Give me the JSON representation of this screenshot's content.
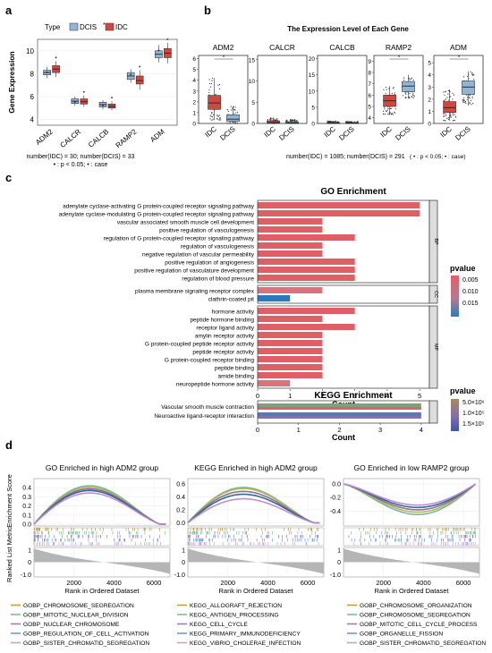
{
  "panel_labels": {
    "a": "a",
    "b": "b",
    "c": "c",
    "d": "d"
  },
  "chart_data": [
    {
      "id": "a",
      "type": "box",
      "legend_title": "Type",
      "series": [
        {
          "name": "DCIS",
          "color": "#8fb6d9"
        },
        {
          "name": "IDC",
          "color": "#d6453d"
        }
      ],
      "categories": [
        "ADM2",
        "CALCR",
        "CALCB",
        "RAMP2",
        "ADM"
      ],
      "boxes": [
        {
          "cat": "ADM2",
          "DCIS": [
            7.6,
            7.9,
            8.1,
            8.3,
            8.6
          ],
          "IDC": [
            7.7,
            8.1,
            8.4,
            8.7,
            9.1
          ]
        },
        {
          "cat": "CALCR",
          "DCIS": [
            5.2,
            5.4,
            5.6,
            5.8,
            6.0
          ],
          "IDC": [
            5.1,
            5.35,
            5.55,
            5.8,
            6.1
          ]
        },
        {
          "cat": "CALCB",
          "DCIS": [
            4.9,
            5.1,
            5.3,
            5.5,
            5.7
          ],
          "IDC": [
            4.8,
            5.0,
            5.15,
            5.35,
            5.6
          ]
        },
        {
          "cat": "RAMP2",
          "DCIS": [
            7.2,
            7.5,
            7.8,
            8.1,
            8.4
          ],
          "IDC": [
            6.6,
            7.1,
            7.4,
            7.8,
            8.3
          ]
        },
        {
          "cat": "ADM",
          "DCIS": [
            9.0,
            9.4,
            9.7,
            10.0,
            10.5
          ],
          "IDC": [
            8.9,
            9.4,
            9.8,
            10.2,
            10.7
          ]
        }
      ],
      "ylabel": "Gene Expression",
      "yticks": [
        4,
        6,
        8,
        10
      ],
      "ylim": [
        3.5,
        11
      ],
      "caption1": "number(IDC) = 30; number(DCIS) = 33",
      "caption2": "• : p < 0.05; • : case"
    },
    {
      "id": "b",
      "type": "box",
      "title": "The Expression Level of Each Gene",
      "subplots": [
        {
          "gene": "ADM2",
          "yticks": [
            0,
            1,
            2,
            3,
            4,
            5,
            6
          ],
          "ylim": [
            0,
            6.3
          ],
          "IDC": [
            0.3,
            1.3,
            1.9,
            2.6,
            4.2
          ],
          "DCIS": [
            0,
            0.2,
            0.4,
            0.8,
            1.6
          ],
          "sig": true
        },
        {
          "gene": "CALCR",
          "yticks": [
            0,
            5,
            10,
            15
          ],
          "ylim": [
            0,
            16
          ],
          "IDC": [
            0,
            0.1,
            0.2,
            0.6,
            1.4
          ],
          "DCIS": [
            0,
            0.05,
            0.15,
            0.4,
            1.0
          ],
          "sig": false
        },
        {
          "gene": "CALCB",
          "yticks": [
            0,
            5,
            10,
            15,
            20
          ],
          "ylim": [
            0,
            21
          ],
          "IDC": [
            0,
            0.05,
            0.1,
            0.3,
            0.8
          ],
          "DCIS": [
            0,
            0.05,
            0.1,
            0.25,
            0.6
          ],
          "sig": false
        },
        {
          "gene": "RAMP2",
          "yticks": [
            4,
            5,
            6,
            7,
            8,
            9
          ],
          "ylim": [
            3.5,
            9.5
          ],
          "IDC": [
            4.3,
            5.0,
            5.5,
            6.0,
            6.8
          ],
          "DCIS": [
            5.7,
            6.3,
            6.8,
            7.2,
            7.8
          ],
          "sig": true
        },
        {
          "gene": "ADM",
          "yticks": [
            0,
            1,
            2,
            3,
            4,
            5
          ],
          "ylim": [
            0,
            5.6
          ],
          "IDC": [
            0.2,
            0.9,
            1.3,
            1.8,
            2.8
          ],
          "DCIS": [
            1.5,
            2.4,
            3.0,
            3.5,
            4.3
          ],
          "sig": true
        }
      ],
      "xcats": [
        "IDC",
        "DCIS"
      ],
      "caption": "number(IDC) = 1085; number(DCIS) = 291",
      "caption_note": "( • : p < 0.05; • : case)"
    },
    {
      "id": "c-go",
      "type": "bar",
      "title": "GO Enrichment",
      "xlabel": "Count",
      "xticks": [
        0,
        1,
        2,
        3,
        4,
        5
      ],
      "xlim": [
        0,
        5.3
      ],
      "groups": [
        {
          "label": "BP",
          "terms": [
            {
              "term": "adenylate cyclase-activating G protein-coupled receptor signaling pathway",
              "count": 5,
              "pvalue": 0.001
            },
            {
              "term": "adenylate cyclase-modulating G protein-coupled receptor signaling pathway",
              "count": 5,
              "pvalue": 0.001
            },
            {
              "term": "vascular associated smooth muscle cell development",
              "count": 2,
              "pvalue": 0.001
            },
            {
              "term": "positive regulation of vasculogenesis",
              "count": 2,
              "pvalue": 0.001
            },
            {
              "term": "regulation of G protein-coupled receptor signaling pathway",
              "count": 3,
              "pvalue": 0.002
            },
            {
              "term": "regulation of vasculogenesis",
              "count": 2,
              "pvalue": 0.001
            },
            {
              "term": "negative regulation of vascular permeability",
              "count": 2,
              "pvalue": 0.001
            },
            {
              "term": "positive regulation of angiogenesis",
              "count": 3,
              "pvalue": 0.002
            },
            {
              "term": "positive regulation of vasculature development",
              "count": 3,
              "pvalue": 0.002
            },
            {
              "term": "regulation of blood pressure",
              "count": 3,
              "pvalue": 0.002
            }
          ]
        },
        {
          "label": "CC",
          "terms": [
            {
              "term": "plasma membrane signaling receptor complex",
              "count": 2,
              "pvalue": 0.004
            },
            {
              "term": "clathrin-coated pit",
              "count": 1,
              "pvalue": 0.016
            }
          ]
        },
        {
          "label": "MF",
          "terms": [
            {
              "term": "hormone activity",
              "count": 3,
              "pvalue": 0.001
            },
            {
              "term": "peptide hormone binding",
              "count": 2,
              "pvalue": 0.001
            },
            {
              "term": "receptor ligand activity",
              "count": 3,
              "pvalue": 0.002
            },
            {
              "term": "amylin receptor activity",
              "count": 2,
              "pvalue": 0.001
            },
            {
              "term": "G protein-coupled peptide receptor activity",
              "count": 2,
              "pvalue": 0.002
            },
            {
              "term": "peptide receptor activity",
              "count": 2,
              "pvalue": 0.002
            },
            {
              "term": "G protein-coupled receptor binding",
              "count": 2,
              "pvalue": 0.003
            },
            {
              "term": "peptide binding",
              "count": 2,
              "pvalue": 0.003
            },
            {
              "term": "amide binding",
              "count": 2,
              "pvalue": 0.003
            },
            {
              "term": "neuropeptide hormone activity",
              "count": 1,
              "pvalue": 0.006
            }
          ]
        }
      ],
      "legend": {
        "title": "pvalue",
        "ticks": [
          "0.005",
          "0.010",
          "0.015"
        ]
      }
    },
    {
      "id": "c-kegg",
      "type": "bar",
      "title": "KEGG Enrichment",
      "xlabel": "Count",
      "xticks": [
        0,
        1,
        2,
        3,
        4
      ],
      "xlim": [
        0,
        4.2
      ],
      "terms": [
        {
          "term": "Vascular smooth muscle contraction",
          "count": 4
        },
        {
          "term": "Neuroactive ligand-receptor interaction",
          "count": 4
        }
      ],
      "legend": {
        "title": "pvalue",
        "ticks": [
          "5.0×10⁶",
          "1.0×10⁵",
          "1.5×10⁵"
        ]
      }
    },
    {
      "id": "d",
      "type": "line",
      "panels": [
        {
          "title": "GO Enriched in high ADM2 group",
          "yticks": [
            "0.4",
            "0.3",
            "0.2",
            "0.1",
            "0.0"
          ],
          "ylim": [
            -0.02,
            0.5
          ],
          "yvals": [
            0.4,
            0.3,
            0.2,
            0.1,
            0.0
          ],
          "peaks": [
            0.48,
            0.46,
            0.44,
            0.42,
            0.39
          ],
          "shape": "pos"
        },
        {
          "title": "KEGG Enriched in high ADM2 group",
          "yticks": [
            "0.6",
            "0.4",
            "0.2",
            "0.0"
          ],
          "ylim": [
            -0.05,
            0.68
          ],
          "yvals": [
            0.6,
            0.4,
            0.2,
            0.0
          ],
          "peaks": [
            0.62,
            0.6,
            0.55,
            0.5,
            0.42
          ],
          "shape": "pos"
        },
        {
          "title": "GO Enriched in low RAMP2 group",
          "yticks": [
            "0.0",
            "-0.2",
            "-0.4"
          ],
          "ylim": [
            -0.62,
            0.08
          ],
          "yvals": [
            0.0,
            -0.2,
            -0.4
          ],
          "peaks": [
            -0.52,
            -0.48,
            -0.44,
            -0.4,
            -0.36
          ],
          "shape": "neg"
        }
      ],
      "rank_yticks": [
        "1",
        "0",
        "-1.0"
      ],
      "xticks": [
        2000,
        4000,
        6000
      ],
      "xlim": [
        0,
        6800
      ],
      "ylabel_top": "Enrichment Score",
      "ylabel_bottom": "Ranked List Metric",
      "xlabel": "Rank in Ordered Dataset",
      "line_colors": [
        "#7bb6a4",
        "#b8b74a",
        "#8a6bb0",
        "#2f6f7d",
        "#c38bd6"
      ],
      "legend_cols": [
        [
          "GOBP_CHROMOSOME_SEGREGATION",
          "GOBP_MITOTIC_NUCLEAR_DIVISION",
          "GOBP_NUCLEAR_CHROMOSOME",
          "GOBP_REGULATION_OF_CELL_ACTIVATION",
          "GOBP_SISTER_CHROMATID_SEGREGATION"
        ],
        [
          "KEGG_ALLOGRAFT_REJECTION",
          "KEGG_ANTIGEN_PROCESSING",
          "KEGG_CELL_CYCLE",
          "KEGG_PRIMARY_IMMUNODEFICIENCY",
          "KEGG_VIBRIO_CHOLERAE_INFECTION"
        ],
        [
          "GOBP_CHROMOSOME_ORGANIZATION",
          "GOBP_CHROMOSOME_SEGREGATION",
          "GOBP_MITOTIC_CELL_CYCLE_PROCESS",
          "GOBP_ORGANELLE_FISSION",
          "GOBP_SISTER_CHROMATID_SEGREGATION"
        ]
      ],
      "legend_colors": [
        "#c89b3c",
        "#7bbf9f",
        "#9d7bc7",
        "#6c9bd6",
        "#c7a0d8"
      ]
    }
  ]
}
